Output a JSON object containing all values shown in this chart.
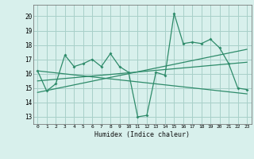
{
  "x": [
    0,
    1,
    2,
    3,
    4,
    5,
    6,
    7,
    8,
    9,
    10,
    11,
    12,
    13,
    14,
    15,
    16,
    17,
    18,
    19,
    20,
    21,
    22,
    23
  ],
  "line1": [
    16.2,
    14.8,
    15.3,
    17.3,
    16.5,
    16.7,
    17.0,
    16.5,
    17.4,
    16.5,
    16.1,
    13.0,
    13.1,
    16.1,
    15.9,
    20.2,
    18.1,
    18.2,
    18.1,
    18.4,
    17.8,
    16.7,
    15.0,
    14.9
  ],
  "line2_x": [
    0,
    23
  ],
  "line2_y": [
    16.2,
    14.6
  ],
  "line3_x": [
    0,
    23
  ],
  "line3_y": [
    15.5,
    16.8
  ],
  "line4_x": [
    0,
    23
  ],
  "line4_y": [
    14.7,
    17.7
  ],
  "color": "#2E8B6A",
  "bg_color": "#D8F0EC",
  "grid_color": "#A8CFC8",
  "xlabel": "Humidex (Indice chaleur)",
  "ylabel_ticks": [
    13,
    14,
    15,
    16,
    17,
    18,
    19,
    20
  ],
  "ylim": [
    12.5,
    20.8
  ],
  "xlim": [
    -0.5,
    23.5
  ]
}
